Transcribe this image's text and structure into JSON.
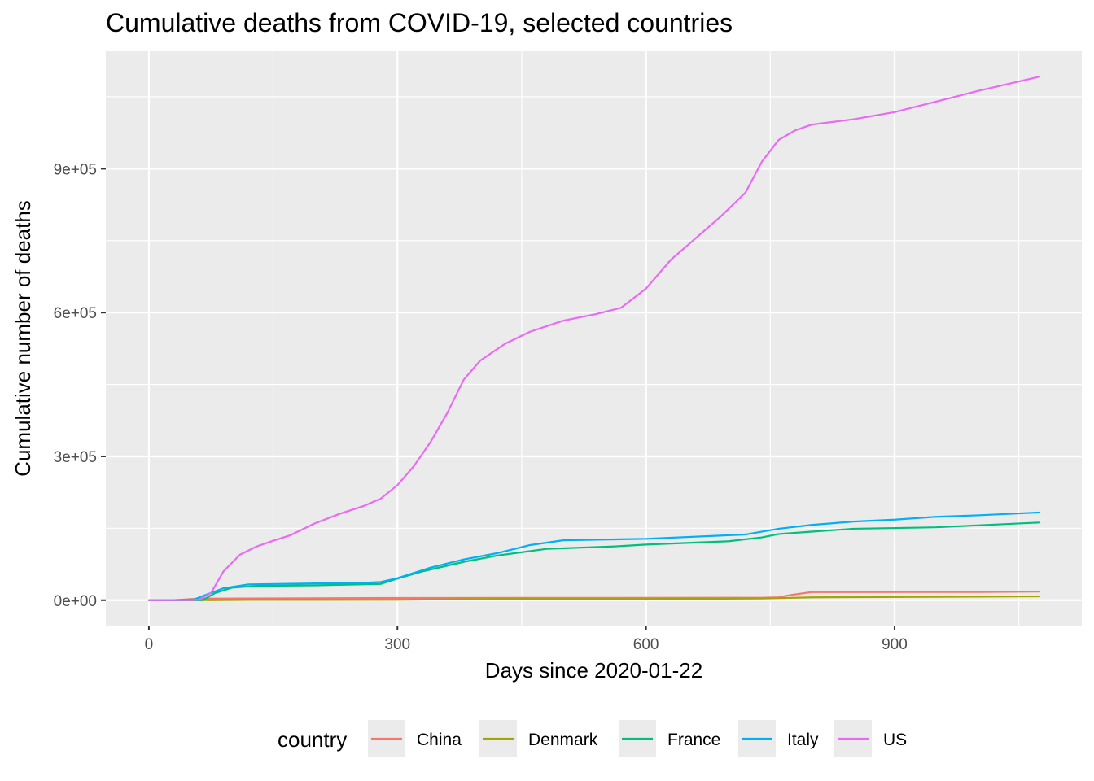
{
  "chart_data": {
    "type": "line",
    "title": "Cumulative deaths from COVID-19, selected countries",
    "xlabel": "Days since 2020-01-22",
    "ylabel": "Cumulative number of deaths",
    "xlim": [
      -52,
      1126
    ],
    "ylim": [
      -53000,
      1145000
    ],
    "xticks": [
      0,
      300,
      600,
      900
    ],
    "xtick_labels": [
      "0",
      "300",
      "600",
      "900"
    ],
    "yticks": [
      0,
      300000,
      600000,
      900000
    ],
    "ytick_labels": [
      "0e+00",
      "3e+05",
      "6e+05",
      "9e+05"
    ],
    "grid": true,
    "legend": {
      "title": "country",
      "position": "bottom"
    },
    "series": [
      {
        "name": "China",
        "color": "#F8766D",
        "points": [
          [
            0,
            17
          ],
          [
            30,
            200
          ],
          [
            60,
            3300
          ],
          [
            300,
            4700
          ],
          [
            740,
            5200
          ],
          [
            760,
            6000
          ],
          [
            775,
            11000
          ],
          [
            800,
            17000
          ],
          [
            1000,
            17200
          ],
          [
            1075,
            18000
          ]
        ]
      },
      {
        "name": "Denmark",
        "color": "#A3A500",
        "points": [
          [
            0,
            0
          ],
          [
            60,
            0
          ],
          [
            120,
            550
          ],
          [
            300,
            900
          ],
          [
            400,
            2500
          ],
          [
            600,
            2600
          ],
          [
            740,
            3500
          ],
          [
            800,
            6000
          ],
          [
            1000,
            7500
          ],
          [
            1075,
            8000
          ]
        ]
      },
      {
        "name": "France",
        "color": "#00BF7D",
        "points": [
          [
            0,
            0
          ],
          [
            50,
            0
          ],
          [
            65,
            200
          ],
          [
            80,
            15000
          ],
          [
            100,
            26000
          ],
          [
            130,
            30000
          ],
          [
            200,
            31000
          ],
          [
            280,
            34000
          ],
          [
            300,
            45000
          ],
          [
            330,
            60000
          ],
          [
            380,
            80000
          ],
          [
            420,
            93000
          ],
          [
            480,
            107000
          ],
          [
            560,
            112000
          ],
          [
            600,
            116000
          ],
          [
            700,
            123000
          ],
          [
            740,
            131000
          ],
          [
            760,
            138000
          ],
          [
            800,
            143000
          ],
          [
            850,
            149000
          ],
          [
            950,
            152000
          ],
          [
            1000,
            156000
          ],
          [
            1075,
            162000
          ]
        ]
      },
      {
        "name": "Italy",
        "color": "#00B0F6",
        "points": [
          [
            0,
            0
          ],
          [
            30,
            0
          ],
          [
            55,
            1800
          ],
          [
            70,
            12000
          ],
          [
            90,
            25000
          ],
          [
            120,
            33000
          ],
          [
            200,
            35000
          ],
          [
            250,
            35500
          ],
          [
            280,
            38000
          ],
          [
            300,
            46000
          ],
          [
            340,
            68000
          ],
          [
            380,
            85000
          ],
          [
            420,
            98000
          ],
          [
            460,
            115000
          ],
          [
            500,
            125000
          ],
          [
            600,
            128000
          ],
          [
            720,
            137000
          ],
          [
            760,
            149000
          ],
          [
            800,
            157000
          ],
          [
            850,
            164000
          ],
          [
            900,
            168000
          ],
          [
            950,
            174000
          ],
          [
            1000,
            177000
          ],
          [
            1075,
            183000
          ]
        ]
      },
      {
        "name": "US",
        "color": "#E76BF3",
        "points": [
          [
            0,
            0
          ],
          [
            50,
            100
          ],
          [
            60,
            1000
          ],
          [
            75,
            15000
          ],
          [
            90,
            60000
          ],
          [
            110,
            95000
          ],
          [
            130,
            112000
          ],
          [
            150,
            124000
          ],
          [
            170,
            135000
          ],
          [
            200,
            160000
          ],
          [
            230,
            180000
          ],
          [
            260,
            197000
          ],
          [
            280,
            212000
          ],
          [
            300,
            240000
          ],
          [
            320,
            280000
          ],
          [
            340,
            330000
          ],
          [
            360,
            390000
          ],
          [
            380,
            460000
          ],
          [
            400,
            500000
          ],
          [
            430,
            535000
          ],
          [
            460,
            560000
          ],
          [
            500,
            583000
          ],
          [
            540,
            597000
          ],
          [
            570,
            610000
          ],
          [
            600,
            650000
          ],
          [
            630,
            710000
          ],
          [
            660,
            755000
          ],
          [
            690,
            800000
          ],
          [
            720,
            850000
          ],
          [
            740,
            915000
          ],
          [
            760,
            960000
          ],
          [
            780,
            980000
          ],
          [
            800,
            992000
          ],
          [
            850,
            1003000
          ],
          [
            900,
            1018000
          ],
          [
            950,
            1040000
          ],
          [
            1000,
            1062000
          ],
          [
            1075,
            1092000
          ]
        ]
      }
    ]
  }
}
